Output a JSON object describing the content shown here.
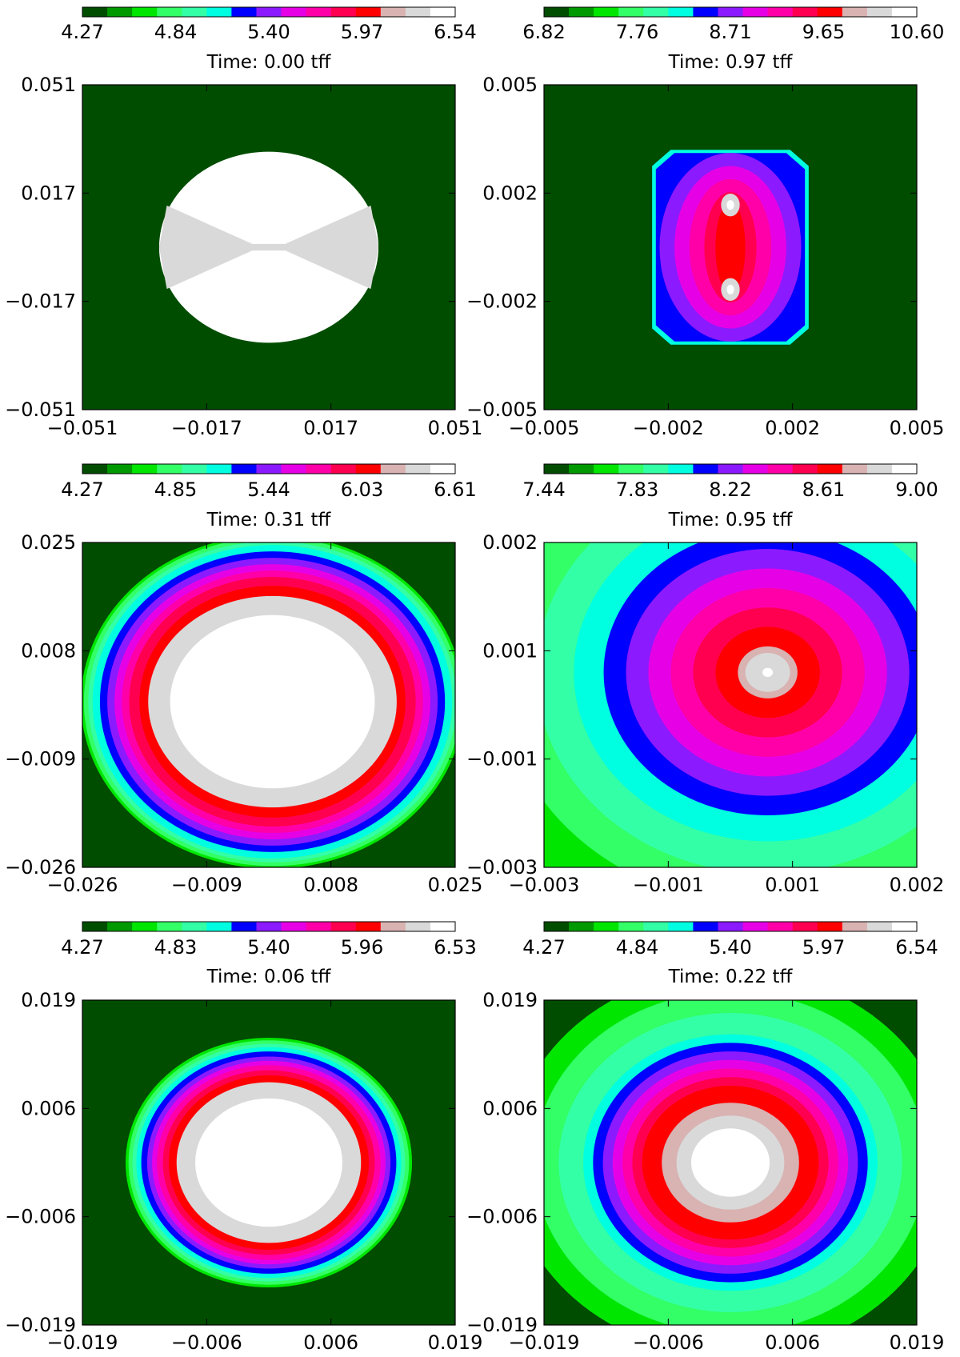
{
  "colormap": [
    "#004d00",
    "#009900",
    "#00e600",
    "#33ff66",
    "#33ffa6",
    "#00ffe0",
    "#0000ff",
    "#8c1aff",
    "#e600e6",
    "#ff00a8",
    "#ff0050",
    "#ff0000",
    "#d9b2b2",
    "#d9d9d9",
    "#ffffff"
  ],
  "chart_data": [
    {
      "type": "heatmap",
      "title": "Time: 0.00 tff",
      "colorbar_ticks": [
        "4.27",
        "4.84",
        "5.40",
        "5.97",
        "6.54"
      ],
      "xticks": [
        "−0.051",
        "−0.017",
        "0.017",
        "0.051"
      ],
      "yticks": [
        "0.051",
        "0.017",
        "−0.017",
        "−0.051"
      ],
      "xlim": [
        -0.051,
        0.051
      ],
      "ylim": [
        -0.051,
        0.051
      ],
      "background_level": 0,
      "shapes": [
        {
          "kind": "circle",
          "cx": 0.0,
          "cy": 0.0,
          "r": 0.03,
          "level": 14
        },
        {
          "kind": "bowtie",
          "level": 13
        }
      ]
    },
    {
      "type": "heatmap",
      "title": "Time: 0.97 tff",
      "colorbar_ticks": [
        "6.82",
        "7.76",
        "8.71",
        "9.65",
        "10.60"
      ],
      "xticks": [
        "−0.005",
        "−0.002",
        "0.002",
        "0.005"
      ],
      "yticks": [
        "0.005",
        "0.002",
        "−0.002",
        "−0.005"
      ],
      "xlim": [
        -0.005,
        0.005
      ],
      "ylim": [
        -0.005,
        0.005
      ],
      "background_level": 0,
      "shapes": [
        {
          "kind": "octagon",
          "level": 5
        },
        {
          "kind": "octagon-inner",
          "level": 6
        },
        {
          "kind": "ellipse",
          "cx": 0.0,
          "cy": 0.0,
          "rx": 0.0019,
          "ry": 0.0029,
          "level": 7
        },
        {
          "kind": "ellipse",
          "cx": 0.0,
          "cy": 0.0,
          "rx": 0.0015,
          "ry": 0.0025,
          "level": 8
        },
        {
          "kind": "ellipse",
          "cx": 0.0,
          "cy": 0.0,
          "rx": 0.0011,
          "ry": 0.0021,
          "level": 9
        },
        {
          "kind": "ellipse",
          "cx": 0.0,
          "cy": 0.0,
          "rx": 0.0007,
          "ry": 0.0017,
          "level": 10
        },
        {
          "kind": "ellipse",
          "cx": 0.0,
          "cy": 0.0,
          "rx": 0.0004,
          "ry": 0.0014,
          "level": 11
        },
        {
          "kind": "ellipse",
          "cx": 0.0,
          "cy": 0.0013,
          "rx": 0.00025,
          "ry": 0.00035,
          "level": 13
        },
        {
          "kind": "ellipse",
          "cx": 0.0,
          "cy": -0.0013,
          "rx": 0.00025,
          "ry": 0.00035,
          "level": 13
        },
        {
          "kind": "ellipse",
          "cx": 0.0,
          "cy": 0.0013,
          "rx": 0.0001,
          "ry": 0.00015,
          "level": 14
        },
        {
          "kind": "ellipse",
          "cx": 0.0,
          "cy": -0.0013,
          "rx": 0.0001,
          "ry": 0.00015,
          "level": 14
        }
      ]
    },
    {
      "type": "heatmap",
      "title": "Time: 0.31 tff",
      "colorbar_ticks": [
        "4.27",
        "4.85",
        "5.44",
        "6.03",
        "6.61"
      ],
      "xticks": [
        "−0.026",
        "−0.009",
        "0.008",
        "0.025"
      ],
      "yticks": [
        "0.025",
        "0.008",
        "−0.009",
        "−0.026"
      ],
      "xlim": [
        -0.026,
        0.025
      ],
      "ylim": [
        -0.026,
        0.025
      ],
      "background_level": 0,
      "rings": {
        "cx": 0.0,
        "cy": 0.0,
        "levels": [
          2,
          3,
          4,
          5,
          6,
          7,
          8,
          9,
          10,
          11,
          13,
          14
        ],
        "rx": [
          0.0262,
          0.0258,
          0.0252,
          0.0246,
          0.0236,
          0.0226,
          0.0216,
          0.0206,
          0.0196,
          0.0182,
          0.017,
          0.014
        ],
        "ry": [
          0.0262,
          0.0258,
          0.0252,
          0.0246,
          0.0236,
          0.0226,
          0.0216,
          0.0206,
          0.0196,
          0.0182,
          0.0166,
          0.0136
        ]
      }
    },
    {
      "type": "heatmap",
      "title": "Time: 0.95 tff",
      "colorbar_ticks": [
        "7.44",
        "7.83",
        "8.22",
        "8.61",
        "9.00"
      ],
      "xticks": [
        "−0.003",
        "−0.001",
        "0.001",
        "0.002"
      ],
      "yticks": [
        "0.002",
        "0.001",
        "−0.001",
        "−0.003"
      ],
      "xlim": [
        -0.003,
        0.002
      ],
      "ylim": [
        -0.003,
        0.002
      ],
      "background_level": 2,
      "rings": {
        "cx": 0.0,
        "cy": 0.0,
        "levels": [
          3,
          4,
          5,
          6,
          7,
          8,
          9,
          10,
          11,
          12,
          13,
          14
        ],
        "rx": [
          0.0036,
          0.0031,
          0.0026,
          0.0022,
          0.0019,
          0.0016,
          0.0013,
          0.001,
          0.0007,
          0.0004,
          0.0003,
          7e-05
        ],
        "ry": [
          0.0036,
          0.0031,
          0.0026,
          0.0022,
          0.0019,
          0.0016,
          0.0013,
          0.001,
          0.0007,
          0.0004,
          0.0003,
          7e-05
        ]
      }
    },
    {
      "type": "heatmap",
      "title": "Time: 0.06 tff",
      "colorbar_ticks": [
        "4.27",
        "4.83",
        "5.40",
        "5.96",
        "6.53"
      ],
      "xticks": [
        "−0.019",
        "−0.006",
        "0.006",
        "0.019"
      ],
      "yticks": [
        "0.019",
        "0.006",
        "−0.006",
        "−0.019"
      ],
      "xlim": [
        -0.019,
        0.019
      ],
      "ylim": [
        -0.019,
        0.019
      ],
      "background_level": 0,
      "rings": {
        "cx": 0.0,
        "cy": 0.0,
        "levels": [
          2,
          3,
          4,
          5,
          6,
          7,
          8,
          9,
          10,
          11,
          13,
          14
        ],
        "rx": [
          0.0146,
          0.0143,
          0.0139,
          0.0135,
          0.013,
          0.0124,
          0.0119,
          0.0114,
          0.0108,
          0.0102,
          0.0094,
          0.0075
        ],
        "ry": [
          0.0146,
          0.0143,
          0.0139,
          0.0135,
          0.013,
          0.0124,
          0.0119,
          0.0114,
          0.0108,
          0.0102,
          0.0094,
          0.0075
        ]
      }
    },
    {
      "type": "heatmap",
      "title": "Time: 0.22 tff",
      "colorbar_ticks": [
        "4.27",
        "4.84",
        "5.40",
        "5.97",
        "6.54"
      ],
      "xticks": [
        "−0.019",
        "−0.006",
        "0.006",
        "0.019"
      ],
      "yticks": [
        "0.019",
        "0.006",
        "−0.006",
        "−0.019"
      ],
      "xlim": [
        -0.019,
        0.019
      ],
      "ylim": [
        -0.019,
        0.019
      ],
      "background_level": 0,
      "rings": {
        "cx": 0.0,
        "cy": 0.0,
        "levels": [
          2,
          3,
          4,
          5,
          6,
          7,
          8,
          9,
          10,
          11,
          12,
          13,
          14
        ],
        "rx": [
          0.0225,
          0.02,
          0.0175,
          0.015,
          0.014,
          0.013,
          0.012,
          0.011,
          0.01,
          0.009,
          0.007,
          0.0055,
          0.004
        ],
        "ry": [
          0.0225,
          0.02,
          0.0175,
          0.015,
          0.014,
          0.013,
          0.012,
          0.011,
          0.01,
          0.009,
          0.007,
          0.0055,
          0.004
        ]
      }
    }
  ]
}
